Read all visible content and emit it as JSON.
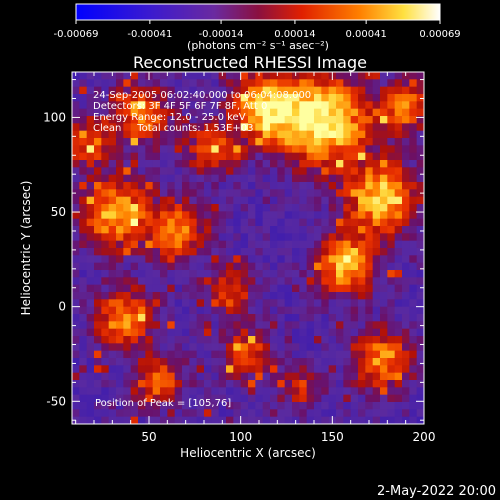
{
  "colorbar": {
    "ticks": [
      "-0.00069",
      "-0.00041",
      "-0.00014",
      "0.00014",
      "0.00041",
      "0.00069"
    ],
    "unit_label": "(photons cm⁻² s⁻¹ asec⁻²)",
    "min": -0.00069,
    "max": 0.00069
  },
  "chart_data": {
    "type": "heatmap",
    "title": "Reconstructed RHESSI Image",
    "xlabel": "Heliocentric X (arcsec)",
    "ylabel": "Heliocentric Y (arcsec)",
    "xlim": [
      8,
      200
    ],
    "ylim": [
      -62,
      124
    ],
    "xticks": [
      50,
      100,
      150,
      200
    ],
    "yticks": [
      -50,
      0,
      50,
      100
    ],
    "info_lines": [
      "24-Sep-2005 06:02:40.000 to 06:04:08.000",
      "Detectors: 3F 4F 5F 6F 7F 8F, Att 0",
      "Energy Range: 12.0 - 25.0 keV",
      "Clean     Total counts: 1.53E+03"
    ],
    "peak_label": "Position of Peak = [105,76]",
    "peak_position": [
      105,
      76
    ],
    "grid": {
      "nx": 48,
      "ny": 48
    },
    "colormap": "blue-purple-red-yellow-white"
  },
  "footer": {
    "timestamp": "2-May-2022 20:00"
  }
}
